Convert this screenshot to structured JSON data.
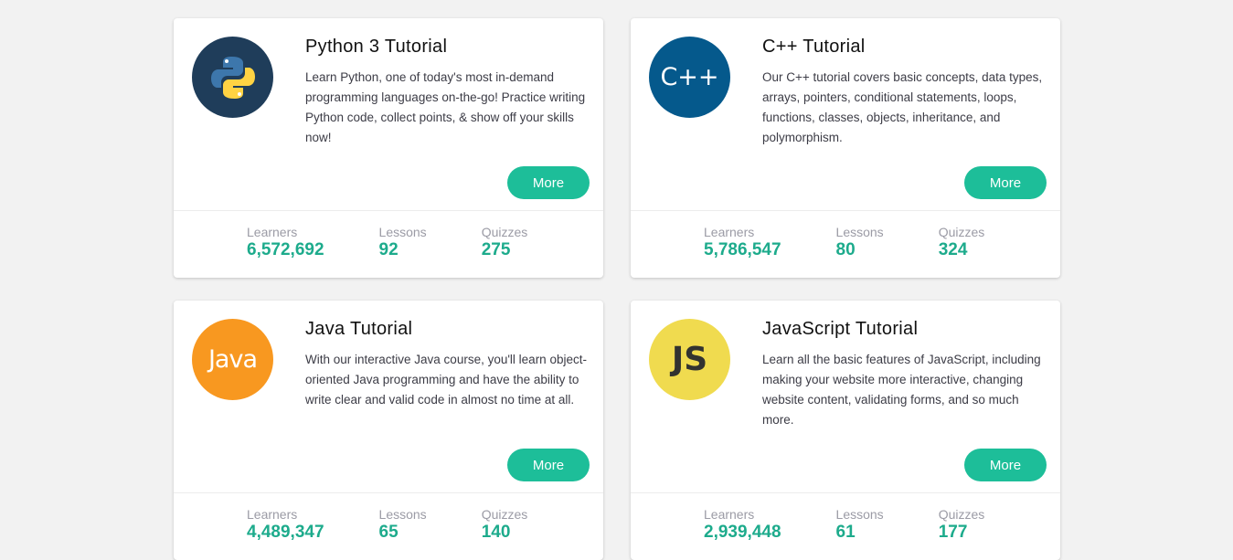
{
  "colors": {
    "accent": "#1dbe99",
    "stat_value": "#1dab8c",
    "background": "#f2f2f2"
  },
  "labels": {
    "learners": "Learners",
    "lessons": "Lessons",
    "quizzes": "Quizzes",
    "more": "More"
  },
  "cards": [
    {
      "icon": "python-logo-icon",
      "logo_bg": "#1f3d5a",
      "logo_text": "",
      "title": "Python 3 Tutorial",
      "description": "Learn Python, one of today's most in-demand programming languages on-the-go! Practice writing Python code, collect points, & show off your skills now!",
      "learners": "6,572,692",
      "lessons": "92",
      "quizzes": "275"
    },
    {
      "icon": "cpp-logo-icon",
      "logo_bg": "#05598c",
      "logo_text": "C++",
      "title": "C++ Tutorial",
      "description": "Our C++ tutorial covers basic concepts, data types, arrays, pointers, conditional statements, loops, functions, classes, objects, inheritance, and polymorphism.",
      "learners": "5,786,547",
      "lessons": "80",
      "quizzes": "324"
    },
    {
      "icon": "java-logo-icon",
      "logo_bg": "#f89820",
      "logo_text": "Java",
      "title": "Java Tutorial",
      "description": "With our interactive Java course, you'll learn object-oriented Java programming and have the ability to write clear and valid code in almost no time at all.",
      "learners": "4,489,347",
      "lessons": "65",
      "quizzes": "140"
    },
    {
      "icon": "javascript-logo-icon",
      "logo_bg": "#f0db4f",
      "logo_text": "JS",
      "title": "JavaScript Tutorial",
      "description": "Learn all the basic features of JavaScript, including making your website more interactive, changing website content, validating forms, and so much more.",
      "learners": "2,939,448",
      "lessons": "61",
      "quizzes": "177"
    }
  ]
}
